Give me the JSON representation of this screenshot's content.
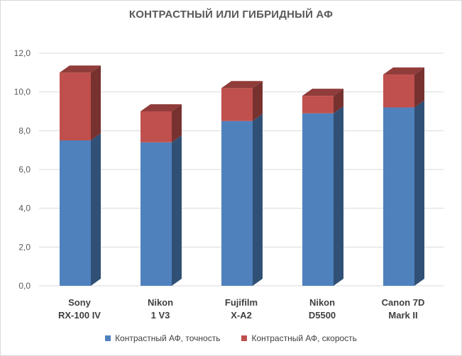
{
  "chart_data": {
    "type": "bar",
    "stacked": true,
    "style": "3d-column",
    "title": "КОНТРАСТНЫЙ ИЛИ ГИБРИДНЫЙ АФ",
    "categories": [
      [
        "Sony",
        "RX-100 IV"
      ],
      [
        "Nikon",
        "1 V3"
      ],
      [
        "Fujifilm",
        "X-A2"
      ],
      [
        "Nikon",
        "D5500"
      ],
      [
        "Canon 7D",
        "Mark II"
      ]
    ],
    "series": [
      {
        "name": "Контрастный  АФ, точность",
        "values": [
          7.5,
          7.4,
          8.5,
          8.9,
          9.2
        ],
        "color": "#4f81bd"
      },
      {
        "name": "Контрастный  АФ, скорость",
        "values": [
          3.5,
          1.6,
          1.7,
          0.9,
          1.7
        ],
        "color": "#c0504d"
      }
    ],
    "yticks": [
      "0,0",
      "2,0",
      "4,0",
      "6,0",
      "8,0",
      "10,0",
      "12,0"
    ],
    "ylim": [
      0,
      12
    ],
    "grid": true,
    "legend_position": "bottom"
  }
}
